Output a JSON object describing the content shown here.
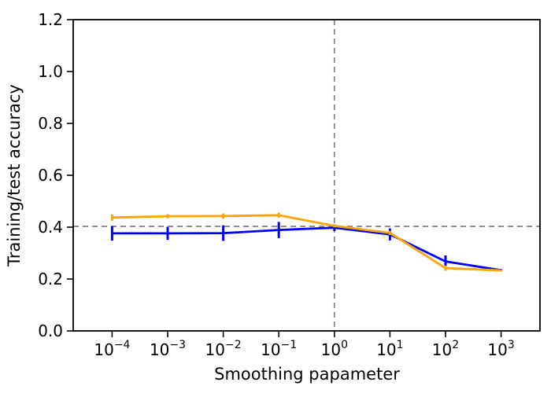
{
  "figure": {
    "title": "",
    "background_color": "#ffffff"
  },
  "chart_data": {
    "type": "line",
    "title": "",
    "xlabel": "Smoothing papameter",
    "ylabel": "Training/test accuracy",
    "xscale": "log",
    "x": [
      0.0001,
      0.001,
      0.01,
      0.1,
      1,
      10,
      100,
      1000
    ],
    "x_tick_exponents": [
      -4,
      -3,
      -2,
      -1,
      0,
      1,
      2,
      3
    ],
    "x_log_range": [
      -4.7,
      3.7
    ],
    "ylim": [
      0.0,
      1.2
    ],
    "yticks": [
      0.0,
      0.2,
      0.4,
      0.6,
      0.8,
      1.0,
      1.2
    ],
    "grid": false,
    "legend": "none",
    "series": [
      {
        "name": "blue-series",
        "color": "#0000ff",
        "values": [
          0.376,
          0.376,
          0.377,
          0.389,
          0.398,
          0.372,
          0.268,
          0.234
        ],
        "errors": [
          0.028,
          0.025,
          0.03,
          0.031,
          0.013,
          0.023,
          0.023,
          0.005
        ]
      },
      {
        "name": "orange-series",
        "color": "#ffa500",
        "values": [
          0.437,
          0.442,
          0.443,
          0.446,
          0.405,
          0.378,
          0.242,
          0.233
        ],
        "errors": [
          0.012,
          0.008,
          0.01,
          0.01,
          0.006,
          0.008,
          0.01,
          0.004
        ]
      }
    ],
    "reference_lines": {
      "vline_x": 1,
      "hline_y": 0.403,
      "color": "#808080",
      "style": "dashed"
    }
  }
}
